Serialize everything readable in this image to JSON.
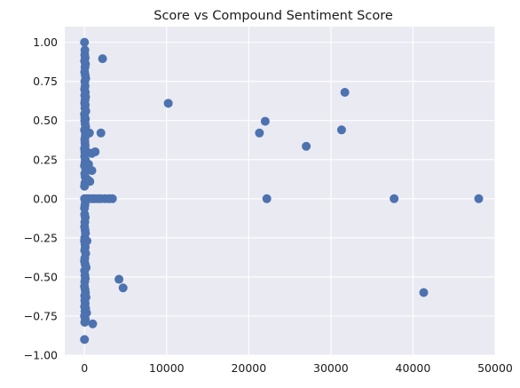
{
  "chart_data": {
    "type": "scatter",
    "title": "Score vs Compound Sentiment Score",
    "xlabel": "",
    "ylabel": "",
    "xlim": [
      -2400,
      50000
    ],
    "ylim": [
      -1.0,
      1.1
    ],
    "xticks": [
      0,
      10000,
      20000,
      30000,
      40000,
      50000
    ],
    "xtick_labels": [
      "0",
      "10000",
      "20000",
      "30000",
      "40000",
      "50000"
    ],
    "yticks": [
      -1.0,
      -0.75,
      -0.5,
      -0.25,
      0.0,
      0.25,
      0.5,
      0.75,
      1.0
    ],
    "ytick_labels": [
      "−1.00",
      "−0.75",
      "−0.50",
      "−0.25",
      "0.00",
      "0.25",
      "0.50",
      "0.75",
      "1.00"
    ],
    "grid": true,
    "background_color": "#eaeaf2",
    "marker_color": "#4c72b0",
    "points": [
      [
        0,
        1.0
      ],
      [
        50,
        0.95
      ],
      [
        30,
        0.92
      ],
      [
        80,
        0.9
      ],
      [
        10,
        0.88
      ],
      [
        120,
        0.86
      ],
      [
        60,
        0.84
      ],
      [
        20,
        0.81
      ],
      [
        90,
        0.79
      ],
      [
        150,
        0.77
      ],
      [
        40,
        0.75
      ],
      [
        70,
        0.72
      ],
      [
        10,
        0.7
      ],
      [
        100,
        0.68
      ],
      [
        30,
        0.66
      ],
      [
        130,
        0.65
      ],
      [
        60,
        0.63
      ],
      [
        20,
        0.61
      ],
      [
        90,
        0.6
      ],
      [
        50,
        0.58
      ],
      [
        160,
        0.56
      ],
      [
        0,
        0.54
      ],
      [
        40,
        0.52
      ],
      [
        110,
        0.51
      ],
      [
        30,
        0.5
      ],
      [
        70,
        0.48
      ],
      [
        140,
        0.46
      ],
      [
        10,
        0.44
      ],
      [
        60,
        0.43
      ],
      [
        200,
        0.42
      ],
      [
        600,
        0.42
      ],
      [
        100,
        0.4
      ],
      [
        30,
        0.38
      ],
      [
        50,
        0.36
      ],
      [
        80,
        0.34
      ],
      [
        0,
        0.32
      ],
      [
        120,
        0.31
      ],
      [
        300,
        0.3
      ],
      [
        40,
        0.3
      ],
      [
        70,
        0.29
      ],
      [
        900,
        0.29
      ],
      [
        1300,
        0.3
      ],
      [
        20,
        0.27
      ],
      [
        100,
        0.25
      ],
      [
        60,
        0.23
      ],
      [
        250,
        0.22
      ],
      [
        500,
        0.22
      ],
      [
        0,
        0.21
      ],
      [
        150,
        0.19
      ],
      [
        900,
        0.18
      ],
      [
        30,
        0.16
      ],
      [
        80,
        0.14
      ],
      [
        200,
        0.13
      ],
      [
        400,
        0.12
      ],
      [
        650,
        0.11
      ],
      [
        50,
        0.1
      ],
      [
        0,
        0.08
      ],
      [
        200,
        0.0
      ],
      [
        500,
        0.0
      ],
      [
        900,
        0.0
      ],
      [
        1200,
        0.0
      ],
      [
        1600,
        0.0
      ],
      [
        2000,
        0.0
      ],
      [
        2500,
        0.0
      ],
      [
        3000,
        0.0
      ],
      [
        3400,
        0.0
      ],
      [
        10,
        0.0
      ],
      [
        100,
        -0.02
      ],
      [
        50,
        -0.04
      ],
      [
        0,
        -0.06
      ],
      [
        20,
        -0.1
      ],
      [
        90,
        -0.12
      ],
      [
        40,
        -0.15
      ],
      [
        10,
        -0.18
      ],
      [
        70,
        -0.2
      ],
      [
        120,
        -0.22
      ],
      [
        30,
        -0.25
      ],
      [
        0,
        -0.27
      ],
      [
        300,
        -0.27
      ],
      [
        60,
        -0.29
      ],
      [
        90,
        -0.31
      ],
      [
        20,
        -0.33
      ],
      [
        150,
        -0.35
      ],
      [
        40,
        -0.38
      ],
      [
        0,
        -0.4
      ],
      [
        80,
        -0.42
      ],
      [
        200,
        -0.44
      ],
      [
        10,
        -0.46
      ],
      [
        50,
        -0.49
      ],
      [
        100,
        -0.51
      ],
      [
        30,
        -0.53
      ],
      [
        0,
        -0.56
      ],
      [
        70,
        -0.58
      ],
      [
        120,
        -0.6
      ],
      [
        20,
        -0.62
      ],
      [
        180,
        -0.63
      ],
      [
        40,
        -0.65
      ],
      [
        90,
        -0.67
      ],
      [
        10,
        -0.69
      ],
      [
        140,
        -0.7
      ],
      [
        60,
        -0.72
      ],
      [
        250,
        -0.73
      ],
      [
        0,
        -0.75
      ],
      [
        100,
        -0.77
      ],
      [
        30,
        -0.79
      ],
      [
        1000,
        -0.8
      ],
      [
        0,
        -0.9
      ],
      [
        2200,
        0.895
      ],
      [
        2000,
        0.42
      ],
      [
        10200,
        0.61
      ],
      [
        21300,
        0.42
      ],
      [
        22000,
        0.495
      ],
      [
        22200,
        0.0
      ],
      [
        27000,
        0.335
      ],
      [
        31300,
        0.44
      ],
      [
        31700,
        0.68
      ],
      [
        37700,
        0.0
      ],
      [
        48000,
        0.0
      ],
      [
        4200,
        -0.515
      ],
      [
        4700,
        -0.57
      ],
      [
        41300,
        -0.6
      ]
    ]
  }
}
